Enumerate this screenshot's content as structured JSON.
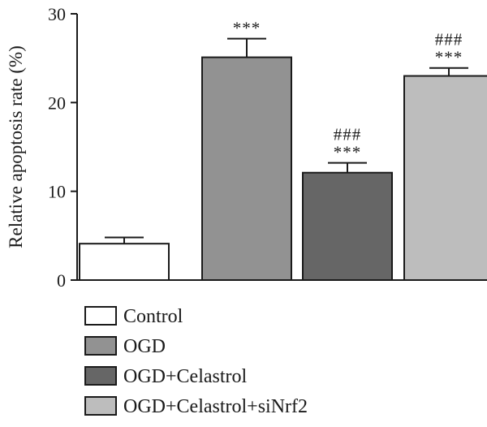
{
  "chart_data": {
    "type": "bar",
    "ylabel": "Relative apoptosis rate (%)",
    "ylim": [
      0,
      30
    ],
    "yticks": [
      0,
      10,
      20,
      30
    ],
    "grid": false,
    "legend_position": "bottom-left",
    "bars": [
      {
        "label": "Control",
        "value": 4.1,
        "error": 0.7,
        "color": "#ffffff",
        "annotation": []
      },
      {
        "label": "OGD",
        "value": 25.1,
        "error": 2.1,
        "color": "#929292",
        "annotation": [
          "***"
        ]
      },
      {
        "label": "OGD+Celastrol",
        "value": 12.1,
        "error": 1.1,
        "color": "#666666",
        "annotation": [
          "###",
          "***"
        ]
      },
      {
        "label": "OGD+Celastrol+siNrf2",
        "value": 23.0,
        "error": 0.9,
        "color": "#bdbdbd",
        "annotation": [
          "###",
          "***"
        ]
      }
    ]
  }
}
